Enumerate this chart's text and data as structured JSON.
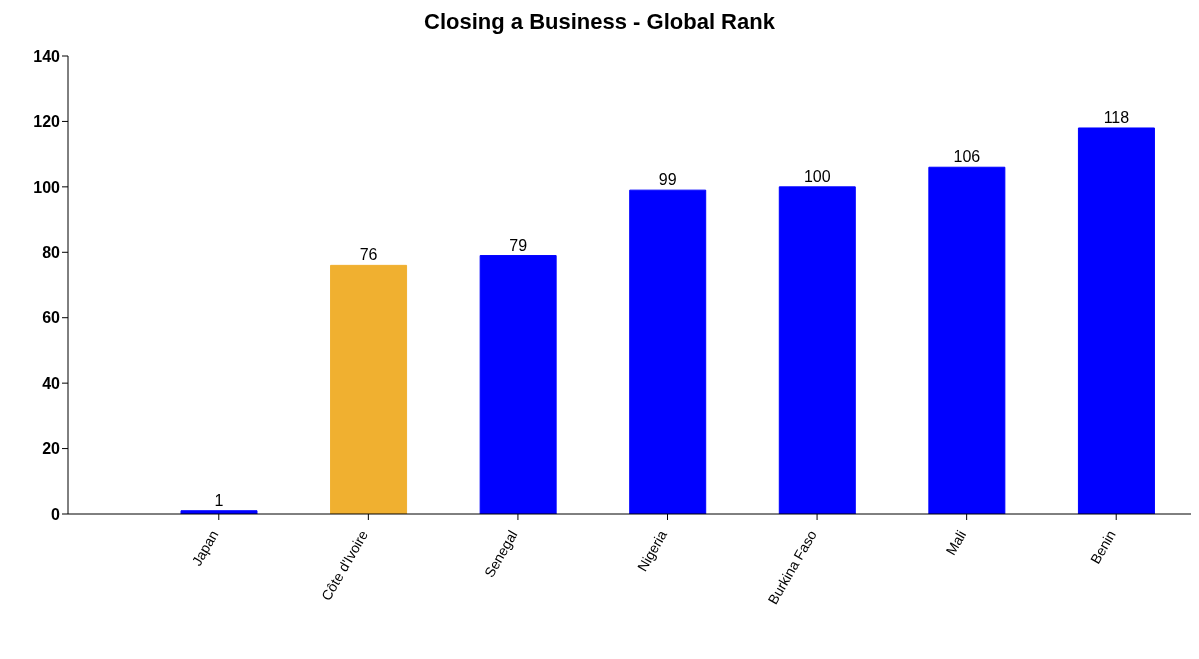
{
  "chart_data": {
    "type": "bar",
    "title": "Closing a Business - Global Rank",
    "categories": [
      "Japan",
      "Côte d'Ivoire",
      "Senegal",
      "Nigeria",
      "Burkina Faso",
      "Mali",
      "Benin"
    ],
    "values": [
      1,
      76,
      79,
      99,
      100,
      106,
      118
    ],
    "colors": [
      "#0000ff",
      "#f0b030",
      "#0000ff",
      "#0000ff",
      "#0000ff",
      "#0000ff",
      "#0000ff"
    ],
    "ylim": [
      0,
      140
    ],
    "yticks": [
      0,
      20,
      40,
      60,
      80,
      100,
      120,
      140
    ],
    "grid": false,
    "data_labels": true,
    "legend": false
  }
}
